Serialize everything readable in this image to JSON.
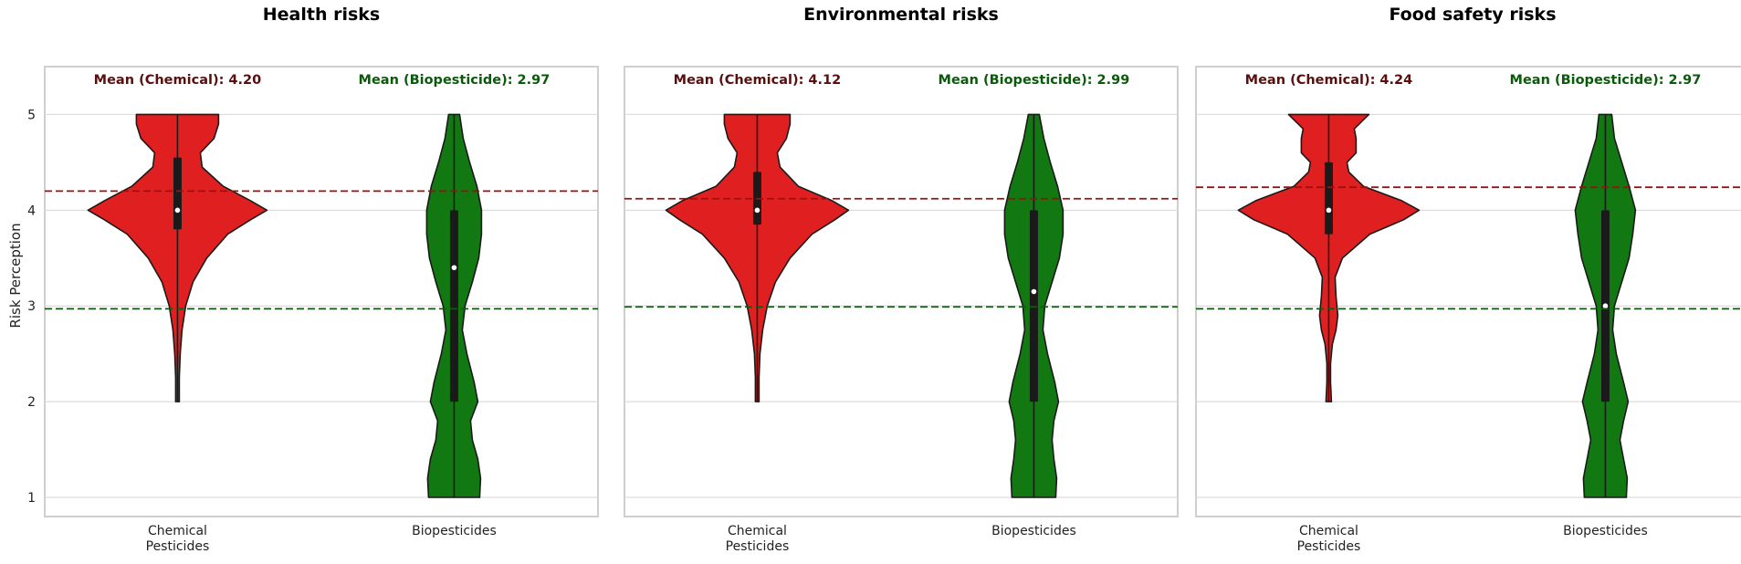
{
  "chart_data": {
    "type": "violin",
    "ylabel": "Risk Perception",
    "categories": [
      "Chemical\nPesticides",
      "Biopesticides"
    ],
    "ylim": [
      0.8,
      5.5
    ],
    "yticks": [
      1,
      2,
      3,
      4,
      5
    ],
    "grid": true,
    "colors": {
      "chemical": "#e02020",
      "biopesticide": "#127812",
      "chemical_mean_line": "#9b1010",
      "biopesticide_mean_line": "#0e5a0e",
      "chemical_text": "#5a0f0f",
      "biopesticide_text": "#0b5a0b"
    },
    "panels": [
      {
        "title": "Health risks",
        "mean_chemical_label": "Mean (Chemical): 4.20",
        "mean_biopesticide_label": "Mean (Biopesticide): 2.97",
        "mean_chemical": 4.2,
        "mean_biopesticide": 2.97,
        "violins": [
          {
            "median": 4,
            "q1": 3.8,
            "q3": 4.55,
            "whisker_low": 2.0,
            "whisker_high": 5.0,
            "profile": [
              [
                2.0,
                0.02
              ],
              [
                2.25,
                0.02
              ],
              [
                2.5,
                0.03
              ],
              [
                2.75,
                0.05
              ],
              [
                3.0,
                0.09
              ],
              [
                3.25,
                0.17
              ],
              [
                3.5,
                0.32
              ],
              [
                3.75,
                0.55
              ],
              [
                3.9,
                0.8
              ],
              [
                4.0,
                0.98
              ],
              [
                4.1,
                0.8
              ],
              [
                4.25,
                0.5
              ],
              [
                4.45,
                0.27
              ],
              [
                4.6,
                0.25
              ],
              [
                4.75,
                0.4
              ],
              [
                4.9,
                0.45
              ],
              [
                5.0,
                0.45
              ]
            ]
          },
          {
            "median": 3.4,
            "q1": 2.0,
            "q3": 4.0,
            "whisker_low": 1.0,
            "whisker_high": 5.0,
            "profile": [
              [
                1.0,
                0.28
              ],
              [
                1.2,
                0.29
              ],
              [
                1.4,
                0.26
              ],
              [
                1.6,
                0.2
              ],
              [
                1.8,
                0.18
              ],
              [
                2.0,
                0.26
              ],
              [
                2.2,
                0.22
              ],
              [
                2.5,
                0.14
              ],
              [
                2.75,
                0.09
              ],
              [
                3.0,
                0.12
              ],
              [
                3.25,
                0.2
              ],
              [
                3.5,
                0.27
              ],
              [
                3.75,
                0.3
              ],
              [
                4.0,
                0.3
              ],
              [
                4.25,
                0.25
              ],
              [
                4.5,
                0.17
              ],
              [
                4.75,
                0.1
              ],
              [
                5.0,
                0.06
              ]
            ]
          }
        ]
      },
      {
        "title": "Environmental risks",
        "mean_chemical_label": "Mean (Chemical): 4.12",
        "mean_biopesticide_label": "Mean (Biopesticide): 2.99",
        "mean_chemical": 4.12,
        "mean_biopesticide": 2.99,
        "violins": [
          {
            "median": 4,
            "q1": 3.85,
            "q3": 4.4,
            "whisker_low": 2.0,
            "whisker_high": 5.0,
            "profile": [
              [
                2.0,
                0.02
              ],
              [
                2.25,
                0.02
              ],
              [
                2.5,
                0.03
              ],
              [
                2.75,
                0.06
              ],
              [
                3.0,
                0.11
              ],
              [
                3.25,
                0.2
              ],
              [
                3.5,
                0.36
              ],
              [
                3.75,
                0.6
              ],
              [
                3.9,
                0.85
              ],
              [
                4.0,
                1.0
              ],
              [
                4.1,
                0.82
              ],
              [
                4.25,
                0.45
              ],
              [
                4.45,
                0.25
              ],
              [
                4.6,
                0.22
              ],
              [
                4.75,
                0.32
              ],
              [
                4.9,
                0.36
              ],
              [
                5.0,
                0.36
              ]
            ]
          },
          {
            "median": 3.15,
            "q1": 2.0,
            "q3": 4.0,
            "whisker_low": 1.0,
            "whisker_high": 5.0,
            "profile": [
              [
                1.0,
                0.24
              ],
              [
                1.2,
                0.25
              ],
              [
                1.4,
                0.22
              ],
              [
                1.6,
                0.2
              ],
              [
                1.8,
                0.22
              ],
              [
                2.0,
                0.27
              ],
              [
                2.2,
                0.23
              ],
              [
                2.5,
                0.15
              ],
              [
                2.75,
                0.1
              ],
              [
                3.0,
                0.12
              ],
              [
                3.25,
                0.2
              ],
              [
                3.5,
                0.28
              ],
              [
                3.75,
                0.32
              ],
              [
                4.0,
                0.32
              ],
              [
                4.25,
                0.26
              ],
              [
                4.5,
                0.18
              ],
              [
                4.75,
                0.11
              ],
              [
                5.0,
                0.06
              ]
            ]
          }
        ]
      },
      {
        "title": "Food safety risks",
        "mean_chemical_label": "Mean (Chemical): 4.24",
        "mean_biopesticide_label": "Mean (Biopesticide): 2.97",
        "mean_chemical": 4.24,
        "mean_biopesticide": 2.97,
        "violins": [
          {
            "median": 4,
            "q1": 3.75,
            "q3": 4.5,
            "whisker_low": 2.0,
            "whisker_high": 5.0,
            "profile": [
              [
                2.0,
                0.03
              ],
              [
                2.2,
                0.02
              ],
              [
                2.4,
                0.02
              ],
              [
                2.6,
                0.04
              ],
              [
                2.75,
                0.08
              ],
              [
                2.9,
                0.1
              ],
              [
                3.1,
                0.08
              ],
              [
                3.3,
                0.07
              ],
              [
                3.5,
                0.15
              ],
              [
                3.75,
                0.45
              ],
              [
                3.9,
                0.82
              ],
              [
                4.0,
                0.99
              ],
              [
                4.1,
                0.8
              ],
              [
                4.25,
                0.38
              ],
              [
                4.4,
                0.22
              ],
              [
                4.5,
                0.2
              ],
              [
                4.6,
                0.3
              ],
              [
                4.75,
                0.3
              ],
              [
                4.85,
                0.28
              ],
              [
                5.0,
                0.44
              ]
            ]
          },
          {
            "median": 3.0,
            "q1": 2.0,
            "q3": 4.0,
            "whisker_low": 1.0,
            "whisker_high": 5.0,
            "profile": [
              [
                1.0,
                0.23
              ],
              [
                1.2,
                0.24
              ],
              [
                1.4,
                0.2
              ],
              [
                1.6,
                0.16
              ],
              [
                1.8,
                0.2
              ],
              [
                2.0,
                0.25
              ],
              [
                2.2,
                0.2
              ],
              [
                2.5,
                0.12
              ],
              [
                2.75,
                0.08
              ],
              [
                3.0,
                0.1
              ],
              [
                3.25,
                0.18
              ],
              [
                3.5,
                0.26
              ],
              [
                3.75,
                0.3
              ],
              [
                4.0,
                0.33
              ],
              [
                4.25,
                0.26
              ],
              [
                4.5,
                0.18
              ],
              [
                4.75,
                0.1
              ],
              [
                5.0,
                0.07
              ]
            ]
          }
        ]
      }
    ]
  }
}
